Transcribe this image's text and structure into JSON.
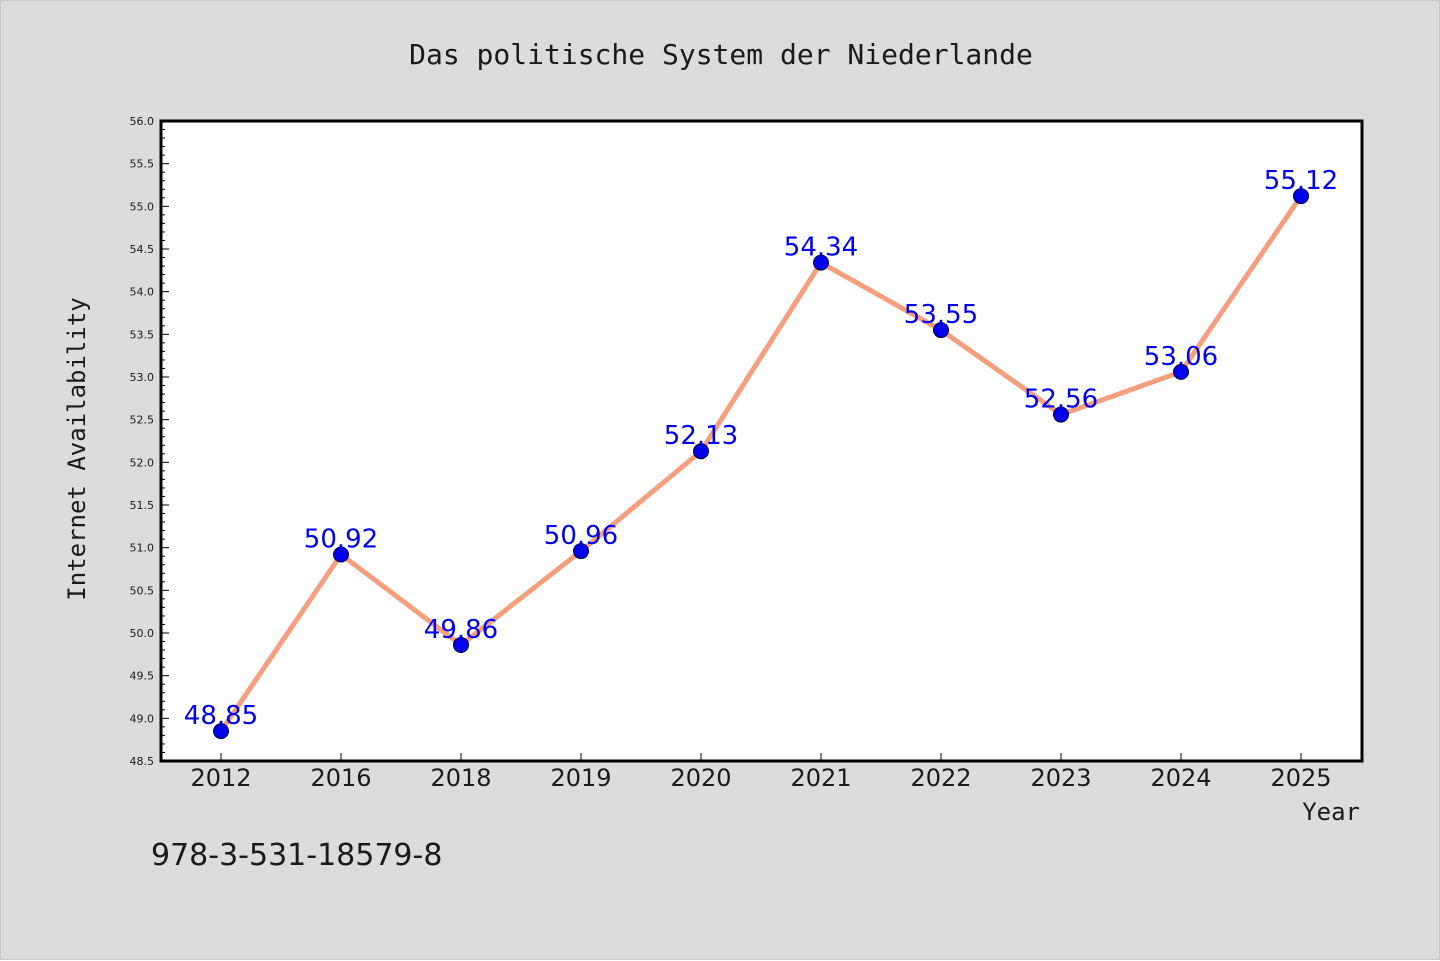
{
  "chart_data": {
    "type": "line",
    "title": "Das politische System der Niederlande",
    "xlabel": "Year",
    "ylabel": "Internet Availability",
    "categories": [
      "2012",
      "2016",
      "2018",
      "2019",
      "2020",
      "2021",
      "2022",
      "2023",
      "2024",
      "2025"
    ],
    "series": [
      {
        "values": [
          48.85,
          50.92,
          49.86,
          50.96,
          52.13,
          54.34,
          53.55,
          52.56,
          53.06,
          55.12
        ]
      }
    ],
    "data_labels": [
      "48.85",
      "50.92",
      "49.86",
      "50.96",
      "52.13",
      "54.34",
      "53.55",
      "52.56",
      "53.06",
      "55.12"
    ],
    "ylim": [
      48.5,
      56.0
    ],
    "yticks": [
      "48.5",
      "49.0",
      "49.5",
      "50.0",
      "50.5",
      "51.0",
      "51.5",
      "52.0",
      "52.5",
      "53.0",
      "53.5",
      "54.0",
      "54.5",
      "55.0",
      "55.5",
      "56.0"
    ],
    "grid": false,
    "legend": "none",
    "line_color": "#f4a07f",
    "marker_color": "#0000ee",
    "label_color": "#0000ee",
    "background_color": "#dcdcdc",
    "plot_background": "#ffffff"
  },
  "footer": {
    "isbn": "978-3-531-18579-8"
  }
}
